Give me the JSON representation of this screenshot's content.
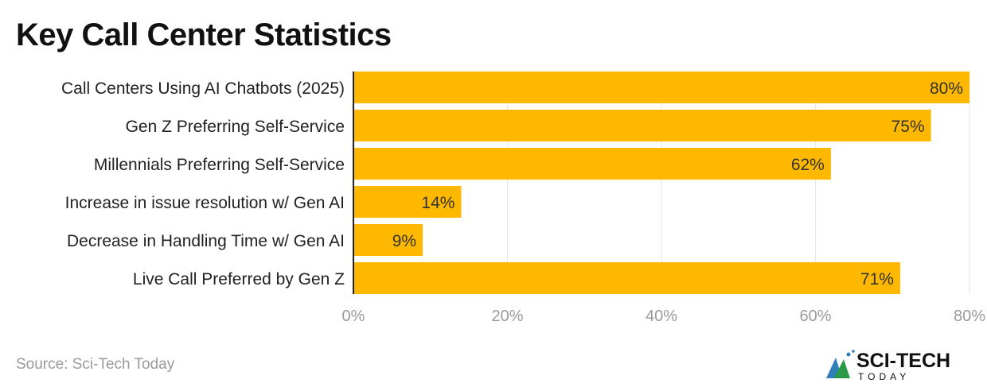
{
  "title": "Key Call Center Statistics",
  "source": "Source: Sci-Tech Today",
  "logo": {
    "main": "SCI-TECH",
    "sub": "TODAY"
  },
  "colors": {
    "bar": "#FFB800",
    "grid": "#e6e6e6",
    "axis": "#222222",
    "tick": "#9a9a9a"
  },
  "chart_data": {
    "type": "bar",
    "orientation": "horizontal",
    "title": "Key Call Center Statistics",
    "categories": [
      "Call Centers Using AI Chatbots (2025)",
      "Gen Z Preferring Self-Service",
      "Millennials Preferring Self-Service",
      "Increase in issue resolution w/ Gen AI",
      "Decrease in Handling Time w/ Gen AI",
      "Live Call Preferred by Gen Z"
    ],
    "values": [
      80,
      75,
      62,
      14,
      9,
      71
    ],
    "data_labels": [
      "80%",
      "75%",
      "62%",
      "14%",
      "9%",
      "71%"
    ],
    "xlim": [
      0,
      80
    ],
    "xticks": [
      0,
      20,
      40,
      60,
      80
    ],
    "xtick_labels": [
      "0%",
      "20%",
      "40%",
      "60%",
      "80%"
    ],
    "grid": true,
    "xlabel": "",
    "ylabel": ""
  }
}
